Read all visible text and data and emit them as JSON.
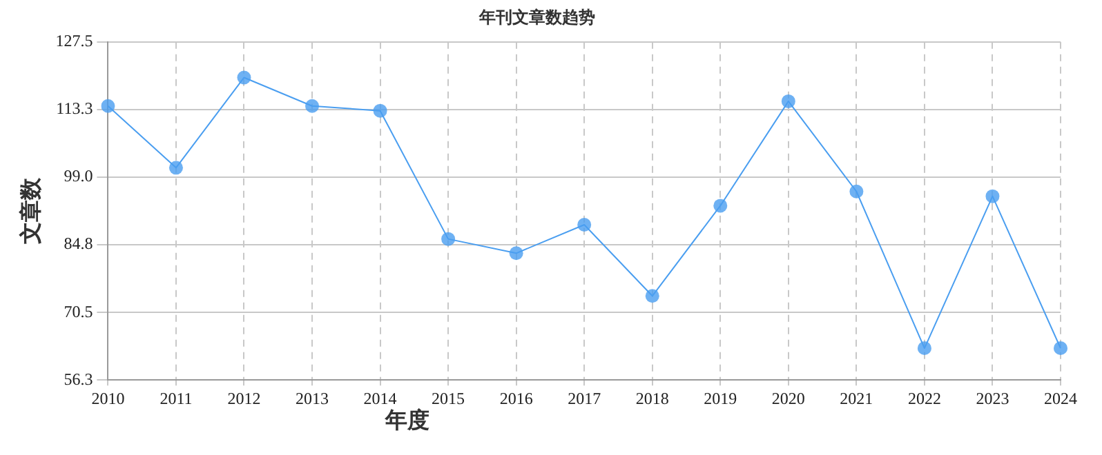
{
  "chart_data": {
    "type": "line",
    "title": "年刊文章数趋势",
    "xlabel": "年度",
    "ylabel": "文章数",
    "categories": [
      "2010",
      "2011",
      "2012",
      "2013",
      "2014",
      "2015",
      "2016",
      "2017",
      "2018",
      "2019",
      "2020",
      "2021",
      "2022",
      "2023",
      "2024"
    ],
    "series": [
      {
        "color": "#4a9ef0",
        "values": [
          114,
          101,
          120,
          114,
          113,
          86,
          83,
          89,
          74,
          93,
          115,
          96,
          63,
          95,
          63
        ]
      }
    ],
    "ylim": [
      56.3,
      127.5
    ],
    "yticks": [
      56.3,
      70.5,
      84.8,
      {
        "value": 99,
        "label": "99.0"
      },
      113.3,
      127.5
    ],
    "grid": true,
    "marker": "circle",
    "line_style": "solid",
    "legend": false
  }
}
